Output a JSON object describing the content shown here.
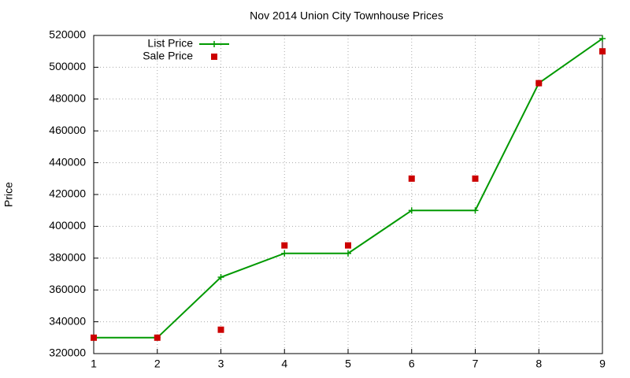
{
  "chart_data": {
    "type": "line",
    "title": "Nov 2014 Union City Townhouse Prices",
    "y_label": "Price",
    "x": [
      1,
      2,
      3,
      4,
      5,
      6,
      7,
      8,
      9
    ],
    "series": [
      {
        "name": "List Price",
        "color": "#009900",
        "mode": "lines+markers",
        "values": [
          330000,
          330000,
          368000,
          383000,
          383000,
          410000,
          410000,
          490000,
          518000
        ]
      },
      {
        "name": "Sale Price",
        "color": "#cc0000",
        "mode": "markers",
        "values": [
          330000,
          330000,
          335000,
          388000,
          388000,
          430000,
          430000,
          490000,
          510000
        ]
      }
    ],
    "xlim": [
      1,
      9
    ],
    "xticks": [
      1,
      2,
      3,
      4,
      5,
      6,
      7,
      8,
      9
    ],
    "ylim": [
      320000,
      520000
    ],
    "yticks": [
      320000,
      340000,
      360000,
      380000,
      400000,
      420000,
      440000,
      460000,
      480000,
      500000,
      520000
    ],
    "grid": true,
    "legend": "top-left"
  }
}
